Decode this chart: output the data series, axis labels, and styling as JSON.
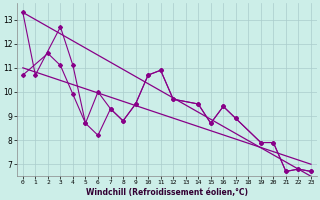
{
  "x_jagged1": [
    0,
    1,
    3,
    4,
    5,
    6,
    7,
    8,
    9,
    10,
    11,
    12,
    14,
    15,
    16,
    17,
    19,
    20,
    21,
    22,
    23
  ],
  "y_jagged1": [
    13.3,
    10.7,
    12.7,
    11.1,
    8.7,
    10.0,
    9.3,
    8.8,
    9.5,
    10.7,
    10.9,
    9.7,
    9.5,
    8.7,
    9.4,
    8.9,
    7.9,
    7.9,
    6.7,
    6.8,
    6.7
  ],
  "x_jagged2": [
    0,
    2,
    3,
    4,
    5,
    6,
    7,
    8,
    9,
    10,
    11,
    12,
    14,
    15,
    16,
    17,
    19,
    20,
    21,
    22,
    23
  ],
  "y_jagged2": [
    10.7,
    11.6,
    11.1,
    9.9,
    8.7,
    8.2,
    9.3,
    8.8,
    9.5,
    10.7,
    10.9,
    9.7,
    9.5,
    8.7,
    9.4,
    8.9,
    7.9,
    7.9,
    6.7,
    6.8,
    6.7
  ],
  "trend1_x": [
    0,
    23
  ],
  "trend1_y": [
    11.0,
    7.0
  ],
  "trend2_x": [
    0,
    23
  ],
  "trend2_y": [
    13.3,
    6.5
  ],
  "bg_color": "#cceee8",
  "line_color": "#880088",
  "grid_color": "#aacccc",
  "xlabel": "Windchill (Refroidissement éolien,°C)",
  "xlim": [
    -0.5,
    23.5
  ],
  "ylim": [
    6.5,
    13.7
  ],
  "yticks": [
    7,
    8,
    9,
    10,
    11,
    12,
    13
  ],
  "xticks": [
    0,
    1,
    2,
    3,
    4,
    5,
    6,
    7,
    8,
    9,
    10,
    11,
    12,
    13,
    14,
    15,
    16,
    17,
    18,
    19,
    20,
    21,
    22,
    23
  ]
}
